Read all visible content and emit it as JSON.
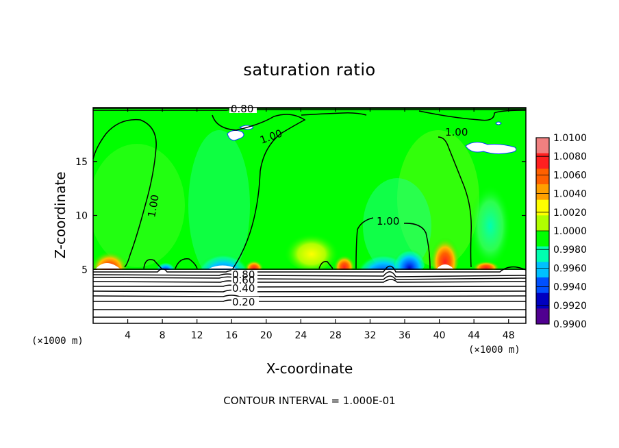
{
  "chart_data": {
    "type": "heatmap",
    "title": "saturation ratio",
    "xlabel": "X-coordinate",
    "ylabel": "Z-coordinate",
    "x_units": "(×1000 m)",
    "xlim": [
      0,
      50
    ],
    "ylim": [
      0,
      20
    ],
    "x_ticks": [
      4,
      8,
      12,
      16,
      20,
      24,
      28,
      32,
      36,
      40,
      44,
      48
    ],
    "y_ticks": [
      5,
      10,
      15
    ],
    "colorbar": {
      "levels": [
        1.01,
        1.008,
        1.006,
        1.004,
        1.002,
        1.0,
        0.998,
        0.996,
        0.994,
        0.992,
        0.99
      ],
      "labels": [
        "1.0100",
        "1.0080",
        "1.0060",
        "1.0040",
        "1.0020",
        "1.0000",
        "0.9980",
        "0.9960",
        "0.9940",
        "0.9920",
        "0.9900"
      ],
      "colors": [
        "#f08080",
        "#ff2020",
        "#ff6000",
        "#ffa000",
        "#ffff00",
        "#b0ff00",
        "#00ff00",
        "#00ffb0",
        "#00c0ff",
        "#0050ff",
        "#0000c0",
        "#500090"
      ]
    },
    "contour_interval_label": "CONTOUR INTERVAL = 1.000E-01",
    "contour_labels": [
      "0.80",
      "1.00",
      "1.00",
      "1.00",
      "1.00",
      "0.80",
      "0.60",
      "0.40",
      "0.20"
    ],
    "background_value": 1.0,
    "saturated_patches_high": [
      {
        "x": 1.5,
        "z": 5.6,
        "value": 1.01
      },
      {
        "x": 18.5,
        "z": 5.3,
        "value": 1.006
      },
      {
        "x": 29.5,
        "z": 5.6,
        "value": 1.008
      },
      {
        "x": 40.8,
        "z": 5.9,
        "value": 1.01
      },
      {
        "x": 46.5,
        "z": 5.3,
        "value": 1.006
      }
    ],
    "subsaturated_patches_low": [
      {
        "x": 8.0,
        "z": 5.4,
        "value": 0.996
      },
      {
        "x": 15.2,
        "z": 5.6,
        "value": 0.992
      },
      {
        "x": 33.5,
        "z": 5.6,
        "value": 0.992
      },
      {
        "x": 36.0,
        "z": 6.0,
        "value": 0.994
      },
      {
        "x": 46.0,
        "z": 9.5,
        "value": 0.997
      }
    ]
  }
}
